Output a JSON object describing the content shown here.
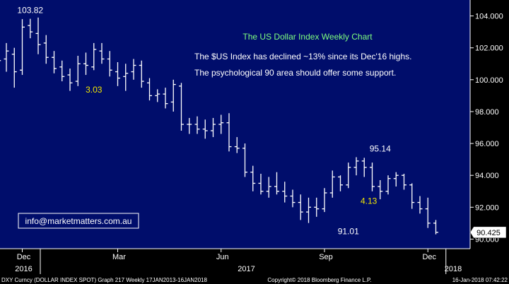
{
  "chart_data": {
    "type": "ohlc",
    "title": "The US Dollar Index Weekly Chart",
    "notes": [
      "The $US Index has declined ~13% since its Dec'16 highs.",
      "The psychological 90 area should offer some support."
    ],
    "ylim": [
      89.4,
      105.0
    ],
    "y_ticks": [
      {
        "value": 90,
        "label": "90.000"
      },
      {
        "value": 92,
        "label": "92.000"
      },
      {
        "value": 94,
        "label": "94.000"
      },
      {
        "value": 96,
        "label": "96.000"
      },
      {
        "value": 98,
        "label": "98.000"
      },
      {
        "value": 100,
        "label": "100.000"
      },
      {
        "value": 102,
        "label": "102.000"
      },
      {
        "value": 104,
        "label": "104.000"
      }
    ],
    "x_ticks": [
      {
        "week": 2,
        "label": "Dec"
      },
      {
        "week": 14,
        "label": "Mar"
      },
      {
        "week": 27,
        "label": "Jun"
      },
      {
        "week": 40,
        "label": "Sep"
      },
      {
        "week": 53,
        "label": "Dec"
      }
    ],
    "year_labels": [
      {
        "week": 2,
        "label": "2016"
      },
      {
        "week": 30,
        "label": "2017"
      },
      {
        "week": 56,
        "label": "2018"
      }
    ],
    "year_dividers": [
      4,
      55
    ],
    "annotations": [
      {
        "week": 3,
        "y": 103.82,
        "label": "103.82",
        "color": "#ffffff",
        "pos": "above"
      },
      {
        "week": 11,
        "y": 99.9,
        "label": "3.03",
        "color": "#f2e600",
        "pos": "below"
      },
      {
        "week": 43,
        "y": 91.01,
        "label": "91.01",
        "color": "#ffffff",
        "pos": "below"
      },
      {
        "week": 44,
        "y": 92.4,
        "label": "4.13",
        "color": "#f2e600",
        "pos": "right"
      },
      {
        "week": 47,
        "y": 95.14,
        "label": "95.14",
        "color": "#ffffff",
        "pos": "above"
      }
    ],
    "last_value": {
      "value": 90.425,
      "label": "90.425"
    },
    "series": [
      {
        "w": -1,
        "o": 100.8,
        "h": 101.6,
        "l": 99.2,
        "c": 101.2
      },
      {
        "w": 0,
        "o": 101.3,
        "h": 102.3,
        "l": 100.5,
        "c": 101.8
      },
      {
        "w": 1,
        "o": 101.6,
        "h": 102.0,
        "l": 99.5,
        "c": 100.5
      },
      {
        "w": 2,
        "o": 100.6,
        "h": 103.8,
        "l": 100.3,
        "c": 103.3
      },
      {
        "w": 3,
        "o": 103.4,
        "h": 103.82,
        "l": 102.6,
        "c": 103.0
      },
      {
        "w": 4,
        "o": 102.9,
        "h": 103.9,
        "l": 101.6,
        "c": 102.2
      },
      {
        "w": 5,
        "o": 102.3,
        "h": 102.8,
        "l": 101.0,
        "c": 101.4
      },
      {
        "w": 6,
        "o": 101.4,
        "h": 101.8,
        "l": 100.4,
        "c": 100.7
      },
      {
        "w": 7,
        "o": 100.8,
        "h": 101.2,
        "l": 99.9,
        "c": 100.2
      },
      {
        "w": 8,
        "o": 100.3,
        "h": 100.7,
        "l": 99.3,
        "c": 99.8
      },
      {
        "w": 9,
        "o": 99.9,
        "h": 101.5,
        "l": 99.6,
        "c": 101.0
      },
      {
        "w": 10,
        "o": 101.0,
        "h": 101.7,
        "l": 100.3,
        "c": 100.9
      },
      {
        "w": 11,
        "o": 100.8,
        "h": 102.3,
        "l": 100.6,
        "c": 101.9
      },
      {
        "w": 12,
        "o": 101.8,
        "h": 102.3,
        "l": 101.0,
        "c": 101.3
      },
      {
        "w": 13,
        "o": 101.3,
        "h": 101.8,
        "l": 100.2,
        "c": 100.6
      },
      {
        "w": 14,
        "o": 100.5,
        "h": 101.1,
        "l": 99.6,
        "c": 100.1
      },
      {
        "w": 15,
        "o": 100.2,
        "h": 101.0,
        "l": 99.3,
        "c": 100.4
      },
      {
        "w": 16,
        "o": 100.5,
        "h": 101.3,
        "l": 100.0,
        "c": 100.9
      },
      {
        "w": 17,
        "o": 100.9,
        "h": 101.2,
        "l": 99.5,
        "c": 99.9
      },
      {
        "w": 18,
        "o": 99.8,
        "h": 100.1,
        "l": 98.7,
        "c": 99.0
      },
      {
        "w": 19,
        "o": 99.0,
        "h": 99.4,
        "l": 98.6,
        "c": 99.1
      },
      {
        "w": 20,
        "o": 99.1,
        "h": 99.5,
        "l": 98.2,
        "c": 98.5
      },
      {
        "w": 21,
        "o": 98.6,
        "h": 100.0,
        "l": 98.0,
        "c": 99.7
      },
      {
        "w": 22,
        "o": 99.6,
        "h": 99.8,
        "l": 96.8,
        "c": 97.2
      },
      {
        "w": 23,
        "o": 97.2,
        "h": 97.6,
        "l": 96.6,
        "c": 97.2
      },
      {
        "w": 24,
        "o": 97.2,
        "h": 97.7,
        "l": 96.6,
        "c": 96.9
      },
      {
        "w": 25,
        "o": 96.9,
        "h": 97.5,
        "l": 96.3,
        "c": 96.8
      },
      {
        "w": 26,
        "o": 96.8,
        "h": 97.6,
        "l": 96.4,
        "c": 97.2
      },
      {
        "w": 27,
        "o": 97.2,
        "h": 97.8,
        "l": 96.6,
        "c": 97.3
      },
      {
        "w": 28,
        "o": 97.3,
        "h": 97.9,
        "l": 95.5,
        "c": 95.8
      },
      {
        "w": 29,
        "o": 95.8,
        "h": 96.4,
        "l": 95.4,
        "c": 95.7
      },
      {
        "w": 30,
        "o": 95.7,
        "h": 96.0,
        "l": 93.9,
        "c": 94.2
      },
      {
        "w": 31,
        "o": 94.2,
        "h": 94.6,
        "l": 93.0,
        "c": 93.5
      },
      {
        "w": 32,
        "o": 93.5,
        "h": 94.1,
        "l": 92.8,
        "c": 93.0
      },
      {
        "w": 33,
        "o": 93.0,
        "h": 93.9,
        "l": 92.6,
        "c": 93.3
      },
      {
        "w": 34,
        "o": 93.3,
        "h": 94.2,
        "l": 92.8,
        "c": 93.0
      },
      {
        "w": 35,
        "o": 93.0,
        "h": 93.6,
        "l": 92.3,
        "c": 92.7
      },
      {
        "w": 36,
        "o": 92.7,
        "h": 93.1,
        "l": 92.0,
        "c": 92.3
      },
      {
        "w": 37,
        "o": 92.3,
        "h": 92.8,
        "l": 91.2,
        "c": 91.7
      },
      {
        "w": 38,
        "o": 91.7,
        "h": 92.6,
        "l": 91.01,
        "c": 92.0
      },
      {
        "w": 39,
        "o": 92.0,
        "h": 92.6,
        "l": 91.4,
        "c": 91.9
      },
      {
        "w": 40,
        "o": 91.9,
        "h": 93.2,
        "l": 91.7,
        "c": 92.9
      },
      {
        "w": 41,
        "o": 92.9,
        "h": 94.3,
        "l": 92.6,
        "c": 93.9
      },
      {
        "w": 42,
        "o": 93.9,
        "h": 94.0,
        "l": 93.0,
        "c": 93.4
      },
      {
        "w": 43,
        "o": 93.4,
        "h": 94.8,
        "l": 93.2,
        "c": 94.5
      },
      {
        "w": 44,
        "o": 94.5,
        "h": 95.14,
        "l": 94.0,
        "c": 94.9
      },
      {
        "w": 45,
        "o": 94.9,
        "h": 95.1,
        "l": 93.9,
        "c": 94.5
      },
      {
        "w": 46,
        "o": 94.5,
        "h": 94.8,
        "l": 93.0,
        "c": 93.3
      },
      {
        "w": 47,
        "o": 93.3,
        "h": 93.7,
        "l": 92.5,
        "c": 93.0
      },
      {
        "w": 48,
        "o": 93.0,
        "h": 94.0,
        "l": 92.8,
        "c": 93.8
      },
      {
        "w": 49,
        "o": 93.8,
        "h": 94.2,
        "l": 93.3,
        "c": 94.0
      },
      {
        "w": 50,
        "o": 94.0,
        "h": 94.1,
        "l": 93.1,
        "c": 93.4
      },
      {
        "w": 51,
        "o": 93.4,
        "h": 93.5,
        "l": 91.9,
        "c": 92.3
      },
      {
        "w": 52,
        "o": 92.3,
        "h": 92.7,
        "l": 91.6,
        "c": 91.9
      },
      {
        "w": 53,
        "o": 91.9,
        "h": 92.6,
        "l": 90.7,
        "c": 91.0
      },
      {
        "w": 54,
        "o": 91.0,
        "h": 91.2,
        "l": 90.3,
        "c": 90.425
      }
    ]
  },
  "watermark": "info@marketmatters.com.au",
  "footer": {
    "left": "DXY Curncy (DOLLAR INDEX SPOT) Graph 217  Weekly 17JAN2013-16JAN2018",
    "center": "Copyright© 2018 Bloomberg Finance L.P.",
    "right": "16-Jan-2018 07:42:22"
  },
  "colors": {
    "background": "#000d6b",
    "bars": "#ffffff",
    "title": "#7fff7f",
    "highlight": "#f2e600",
    "axis_panel": "#000000"
  }
}
